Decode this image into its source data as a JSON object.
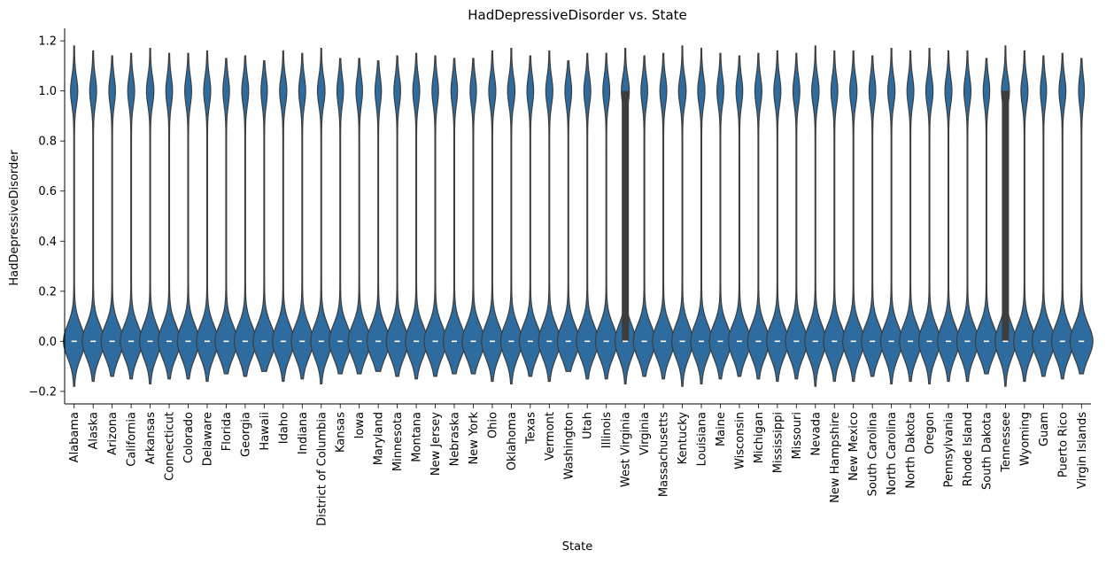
{
  "chart_data": {
    "type": "violin",
    "title": "HadDepressiveDisorder vs. State",
    "xlabel": "State",
    "ylabel": "HadDepressiveDisorder",
    "ylim": [
      -0.25,
      1.25
    ],
    "yticks": [
      -0.2,
      0.0,
      0.2,
      0.4,
      0.6,
      0.8,
      1.0,
      1.2
    ],
    "ytick_labels": [
      "−0.2",
      "0.0",
      "0.2",
      "0.4",
      "0.6",
      "0.8",
      "1.0",
      "1.2"
    ],
    "color": "#2e6c9f",
    "edge_color": "#3d3d3d",
    "grid": false,
    "categories": [
      "Alabama",
      "Alaska",
      "Arizona",
      "California",
      "Arkansas",
      "Connecticut",
      "Colorado",
      "Delaware",
      "Florida",
      "Georgia",
      "Hawaii",
      "Idaho",
      "Indiana",
      "District of Columbia",
      "Kansas",
      "Iowa",
      "Maryland",
      "Minnesota",
      "Montana",
      "New Jersey",
      "Nebraska",
      "New York",
      "Ohio",
      "Oklahoma",
      "Texas",
      "Vermont",
      "Washington",
      "Utah",
      "Illinois",
      "West Virginia",
      "Virginia",
      "Massachusetts",
      "Kentucky",
      "Louisiana",
      "Maine",
      "Wisconsin",
      "Michigan",
      "Mississippi",
      "Missouri",
      "Nevada",
      "New Hampshire",
      "New Mexico",
      "South Carolina",
      "North Carolina",
      "North Dakota",
      "Oregon",
      "Pennsylvania",
      "Rhode Island",
      "South Dakota",
      "Tennessee",
      "Wyoming",
      "Guam",
      "Puerto Rico",
      "Virgin Islands"
    ],
    "share_1": [
      0.22,
      0.2,
      0.18,
      0.2,
      0.23,
      0.19,
      0.2,
      0.21,
      0.18,
      0.2,
      0.17,
      0.22,
      0.2,
      0.24,
      0.18,
      0.18,
      0.17,
      0.19,
      0.2,
      0.18,
      0.18,
      0.17,
      0.21,
      0.23,
      0.19,
      0.21,
      0.19,
      0.2,
      0.2,
      0.26,
      0.19,
      0.2,
      0.24,
      0.22,
      0.2,
      0.19,
      0.21,
      0.21,
      0.2,
      0.23,
      0.2,
      0.22,
      0.19,
      0.22,
      0.2,
      0.22,
      0.21,
      0.21,
      0.18,
      0.26,
      0.21,
      0.16,
      0.2,
      0.14
    ],
    "y_max": [
      1.18,
      1.16,
      1.14,
      1.15,
      1.17,
      1.15,
      1.15,
      1.16,
      1.13,
      1.14,
      1.12,
      1.16,
      1.15,
      1.17,
      1.13,
      1.13,
      1.12,
      1.14,
      1.15,
      1.14,
      1.13,
      1.13,
      1.16,
      1.17,
      1.14,
      1.16,
      1.12,
      1.15,
      1.15,
      1.17,
      1.14,
      1.15,
      1.18,
      1.17,
      1.15,
      1.14,
      1.15,
      1.16,
      1.15,
      1.18,
      1.16,
      1.16,
      1.14,
      1.17,
      1.16,
      1.17,
      1.16,
      1.16,
      1.13,
      1.18,
      1.16,
      1.14,
      1.15,
      1.13
    ],
    "y_min": [
      -0.18,
      -0.16,
      -0.14,
      -0.15,
      -0.17,
      -0.15,
      -0.15,
      -0.16,
      -0.13,
      -0.14,
      -0.12,
      -0.16,
      -0.15,
      -0.17,
      -0.13,
      -0.13,
      -0.12,
      -0.14,
      -0.15,
      -0.14,
      -0.13,
      -0.13,
      -0.16,
      -0.17,
      -0.14,
      -0.16,
      -0.12,
      -0.15,
      -0.15,
      -0.17,
      -0.14,
      -0.15,
      -0.18,
      -0.17,
      -0.15,
      -0.14,
      -0.15,
      -0.16,
      -0.15,
      -0.18,
      -0.16,
      -0.16,
      -0.14,
      -0.17,
      -0.16,
      -0.17,
      -0.16,
      -0.16,
      -0.13,
      -0.18,
      -0.16,
      -0.14,
      -0.15,
      -0.13
    ],
    "iqr_box": [
      {
        "category": "West Virginia",
        "q1": 0.0,
        "q3": 1.0
      },
      {
        "category": "Tennessee",
        "q1": 0.0,
        "q3": 1.0
      }
    ],
    "median": 0.0
  }
}
